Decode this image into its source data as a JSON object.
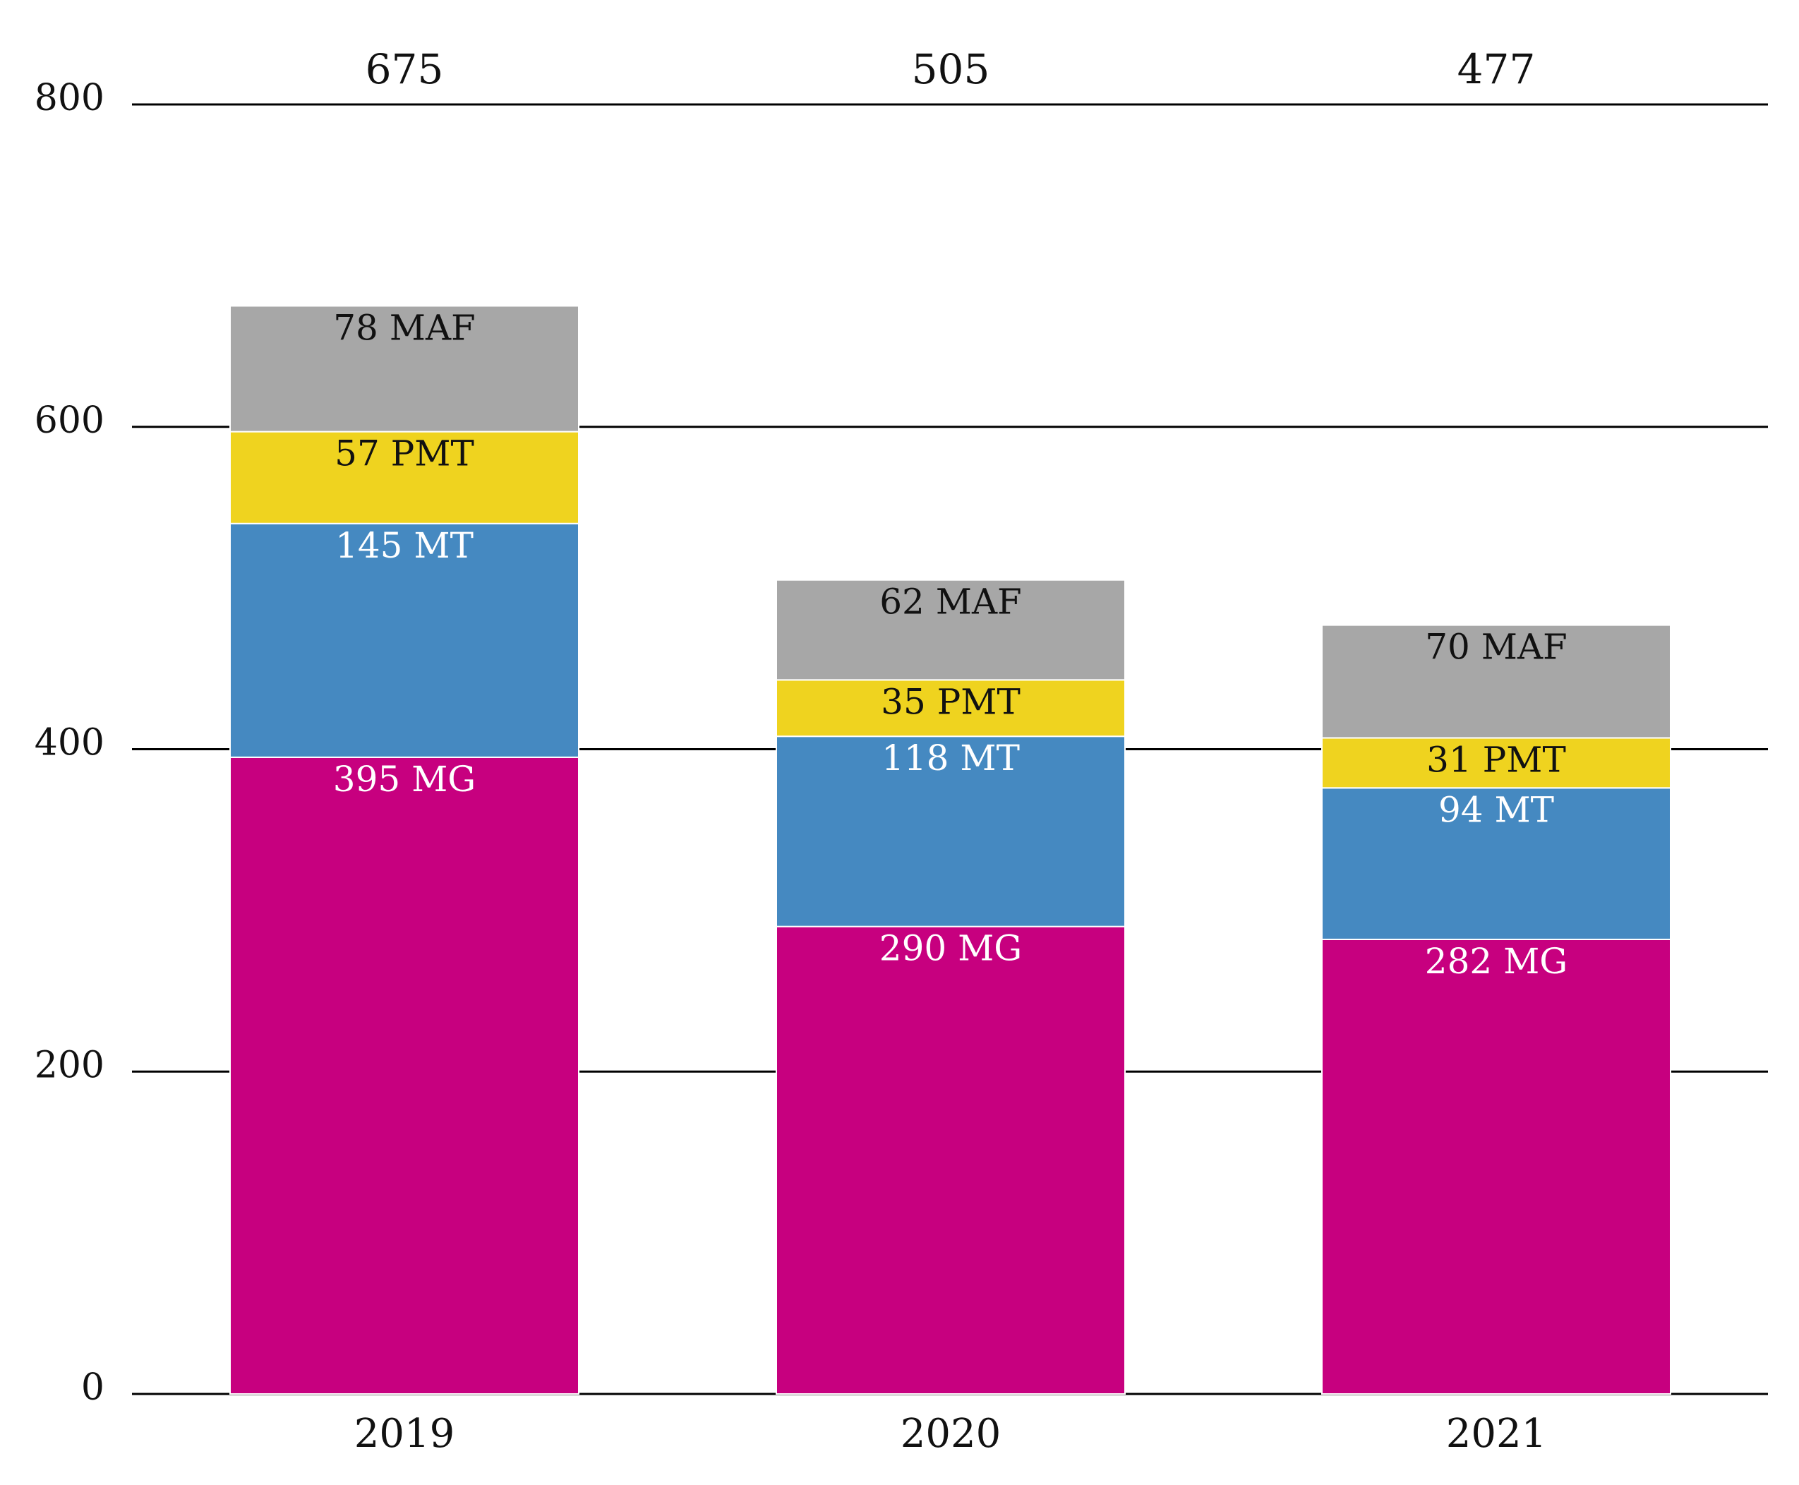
{
  "chart_data": {
    "type": "bar",
    "stacked": true,
    "categories": [
      "2019",
      "2020",
      "2021"
    ],
    "series": [
      {
        "key": "MG",
        "color": "#C7007F",
        "label_color": "#ffffff",
        "values": [
          395,
          290,
          282
        ]
      },
      {
        "key": "MT",
        "color": "#4589C1",
        "label_color": "#ffffff",
        "values": [
          145,
          118,
          94
        ]
      },
      {
        "key": "PMT",
        "color": "#EFD31F",
        "label_color": "#111111",
        "values": [
          57,
          35,
          31
        ]
      },
      {
        "key": "MAF",
        "color": "#A7A7A7",
        "label_color": "#111111",
        "values": [
          78,
          62,
          70
        ]
      }
    ],
    "segment_labels": [
      [
        "395 MG",
        "290 MG",
        "282 MG"
      ],
      [
        "145 MT",
        "118 MT",
        "94 MT"
      ],
      [
        "57 PMT",
        "35 PMT",
        "31 PMT"
      ],
      [
        "78 MAF",
        "62 MAF",
        "70 MAF"
      ]
    ],
    "totals": [
      "675",
      "505",
      "477"
    ],
    "y_ticks": [
      0,
      200,
      400,
      600,
      800
    ],
    "y_tick_labels": [
      "0",
      "200",
      "400",
      "600",
      "800"
    ],
    "ylim": [
      0,
      800
    ],
    "grid": true,
    "title": "",
    "xlabel": "",
    "ylabel": ""
  }
}
